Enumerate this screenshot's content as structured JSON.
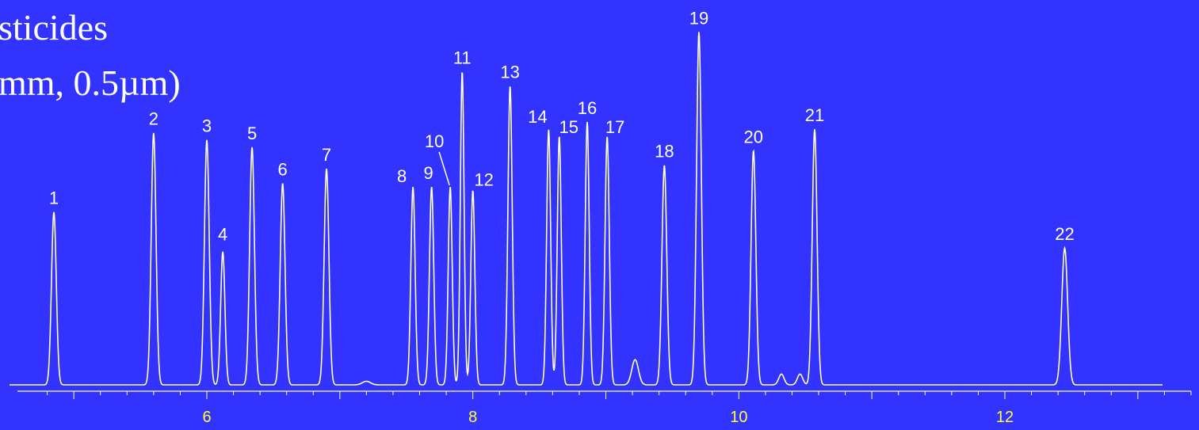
{
  "title_lines": [
    "sticides",
    "mm, 0.5µm)"
  ],
  "colors": {
    "background": "#3333ff",
    "trace": "#ffffcc",
    "axis": "#ffffcc",
    "tick_label": "#ffff33",
    "text": "#ffffff"
  },
  "chart_data": {
    "type": "line",
    "description_axis": "retention time",
    "xlim": [
      4.7,
      13.5
    ],
    "x_tick_labels": [
      6,
      8,
      10,
      12
    ],
    "minor_tick_step": 0.2,
    "ylim": [
      0,
      100
    ],
    "baseline": 2,
    "peaks": [
      {
        "label": "1",
        "x": 4.85,
        "height": 48,
        "width": 0.018
      },
      {
        "label": "2",
        "x": 5.6,
        "height": 70,
        "width": 0.018
      },
      {
        "label": "3",
        "x": 6.0,
        "height": 68,
        "width": 0.018
      },
      {
        "label": "4",
        "x": 6.12,
        "height": 37,
        "width": 0.016
      },
      {
        "label": "5",
        "x": 6.34,
        "height": 66,
        "width": 0.018
      },
      {
        "label": "6",
        "x": 6.57,
        "height": 56,
        "width": 0.018
      },
      {
        "label": "7",
        "x": 6.9,
        "height": 60,
        "width": 0.018
      },
      {
        "label": "8",
        "x": 7.55,
        "height": 55,
        "width": 0.016
      },
      {
        "label": "9",
        "x": 7.69,
        "height": 55,
        "width": 0.016
      },
      {
        "label": "10",
        "x": 7.83,
        "height": 55,
        "width": 0.015
      },
      {
        "label": "11",
        "x": 7.92,
        "height": 87,
        "width": 0.014
      },
      {
        "label": "12",
        "x": 8.0,
        "height": 54,
        "width": 0.015
      },
      {
        "label": "13",
        "x": 8.28,
        "height": 83,
        "width": 0.016
      },
      {
        "label": "14",
        "x": 8.57,
        "height": 71,
        "width": 0.015
      },
      {
        "label": "15",
        "x": 8.65,
        "height": 69,
        "width": 0.015
      },
      {
        "label": "16",
        "x": 8.86,
        "height": 73,
        "width": 0.015
      },
      {
        "label": "17",
        "x": 9.01,
        "height": 69,
        "width": 0.016
      },
      {
        "label": "18",
        "x": 9.44,
        "height": 61,
        "width": 0.018
      },
      {
        "label": "19",
        "x": 9.7,
        "height": 98,
        "width": 0.018
      },
      {
        "label": "20",
        "x": 10.11,
        "height": 65,
        "width": 0.018
      },
      {
        "label": "21",
        "x": 10.57,
        "height": 71,
        "width": 0.018
      },
      {
        "label": "22",
        "x": 12.45,
        "height": 38,
        "width": 0.022
      }
    ],
    "minor_peaks": [
      {
        "x": 9.22,
        "height": 7,
        "width": 0.025
      },
      {
        "x": 10.32,
        "height": 3,
        "width": 0.02
      },
      {
        "x": 10.46,
        "height": 3,
        "width": 0.02
      },
      {
        "x": 7.2,
        "height": 1,
        "width": 0.03
      }
    ]
  }
}
